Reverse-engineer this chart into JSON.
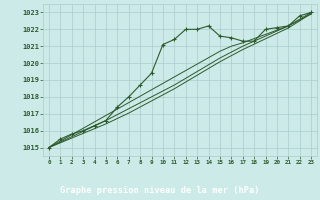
{
  "title": "Graphe pression niveau de la mer (hPa)",
  "bg_color": "#cceae7",
  "plot_bg_color": "#cceae7",
  "grid_color": "#aacccc",
  "line_color": "#2d5a2d",
  "title_bg_color": "#2d5a2d",
  "title_text_color": "#ffffff",
  "x_labels": [
    "0",
    "1",
    "2",
    "3",
    "4",
    "5",
    "6",
    "7",
    "8",
    "9",
    "10",
    "11",
    "12",
    "13",
    "14",
    "15",
    "16",
    "17",
    "18",
    "19",
    "20",
    "21",
    "22",
    "23"
  ],
  "main_data": [
    1015.0,
    1015.5,
    1015.8,
    1016.0,
    1016.3,
    1016.6,
    1017.4,
    1018.0,
    1018.7,
    1019.4,
    1021.1,
    1021.4,
    1022.0,
    1022.0,
    1022.2,
    1021.6,
    1021.5,
    1021.3,
    1021.3,
    1022.0,
    1022.1,
    1022.2,
    1022.8,
    1023.0
  ],
  "trend1": [
    1015.0,
    1015.38,
    1015.76,
    1016.14,
    1016.52,
    1016.9,
    1017.28,
    1017.66,
    1018.04,
    1018.42,
    1018.8,
    1019.18,
    1019.56,
    1019.94,
    1020.32,
    1020.7,
    1021.0,
    1021.2,
    1021.45,
    1021.7,
    1021.95,
    1022.2,
    1022.55,
    1022.9
  ],
  "trend2": [
    1015.0,
    1015.32,
    1015.64,
    1015.96,
    1016.28,
    1016.6,
    1016.95,
    1017.3,
    1017.65,
    1018.0,
    1018.35,
    1018.7,
    1019.1,
    1019.5,
    1019.9,
    1020.3,
    1020.65,
    1021.0,
    1021.3,
    1021.6,
    1021.9,
    1022.2,
    1022.6,
    1023.0
  ],
  "trend3": [
    1015.0,
    1015.28,
    1015.56,
    1015.84,
    1016.12,
    1016.4,
    1016.72,
    1017.04,
    1017.4,
    1017.76,
    1018.12,
    1018.48,
    1018.88,
    1019.28,
    1019.68,
    1020.08,
    1020.44,
    1020.8,
    1021.12,
    1021.44,
    1021.76,
    1022.08,
    1022.5,
    1022.95
  ],
  "ylim": [
    1014.5,
    1023.5
  ],
  "yticks": [
    1015,
    1016,
    1017,
    1018,
    1019,
    1020,
    1021,
    1022,
    1023
  ]
}
